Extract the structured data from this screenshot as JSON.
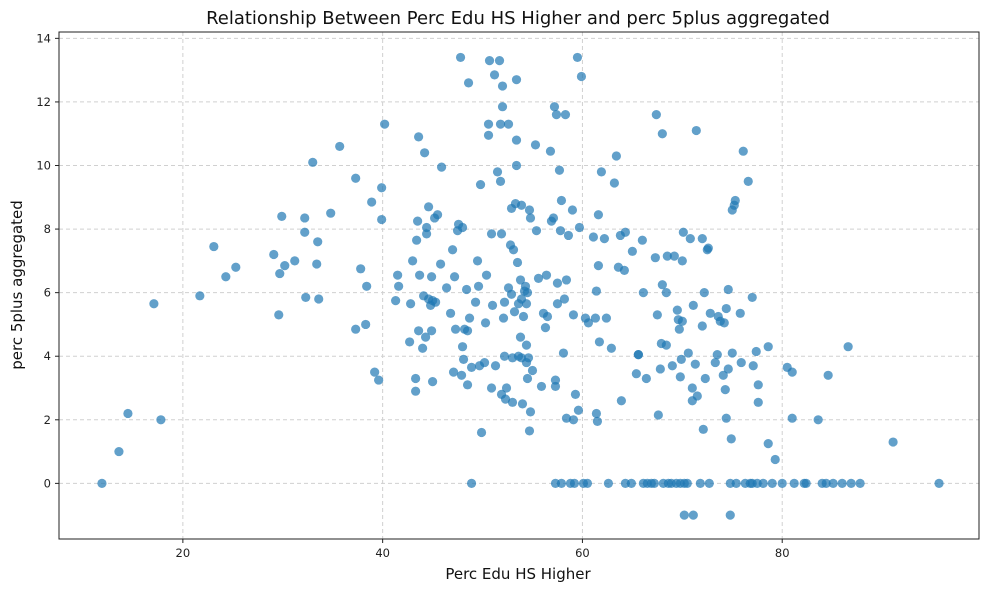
{
  "chart_data": {
    "type": "scatter",
    "title": "Relationship Between Perc Edu HS Higher and perc 5plus aggregated",
    "xlabel": "Perc Edu HS Higher",
    "ylabel": "perc 5plus aggregated",
    "xlim": [
      7.6,
      99.7
    ],
    "ylim": [
      -1.75,
      14.2
    ],
    "xticks": [
      20,
      40,
      60,
      80
    ],
    "yticks": [
      0,
      2,
      4,
      6,
      8,
      10,
      12,
      14
    ],
    "grid": true,
    "point_color": "#1f77b4",
    "point_opacity": 0.7,
    "points": [
      [
        11.9,
        0
      ],
      [
        13.6,
        1.0
      ],
      [
        14.5,
        2.2
      ],
      [
        17.1,
        5.65
      ],
      [
        17.8,
        2.0
      ],
      [
        21.7,
        5.9
      ],
      [
        23.1,
        7.45
      ],
      [
        24.3,
        6.5
      ],
      [
        25.3,
        6.8
      ],
      [
        29.1,
        7.2
      ],
      [
        29.6,
        5.3
      ],
      [
        29.7,
        6.6
      ],
      [
        29.9,
        8.4
      ],
      [
        30.2,
        6.85
      ],
      [
        31.2,
        7.0
      ],
      [
        32.2,
        7.9
      ],
      [
        32.2,
        8.35
      ],
      [
        32.3,
        5.85
      ],
      [
        33.0,
        10.1
      ],
      [
        33.4,
        6.9
      ],
      [
        33.5,
        7.6
      ],
      [
        33.6,
        5.8
      ],
      [
        34.8,
        8.5
      ],
      [
        35.7,
        10.6
      ],
      [
        37.3,
        9.6
      ],
      [
        37.3,
        4.85
      ],
      [
        37.8,
        6.75
      ],
      [
        38.3,
        5.0
      ],
      [
        38.4,
        6.2
      ],
      [
        38.9,
        8.85
      ],
      [
        39.2,
        3.5
      ],
      [
        39.6,
        3.25
      ],
      [
        39.9,
        9.3
      ],
      [
        39.9,
        8.3
      ],
      [
        40.2,
        11.3
      ],
      [
        41.3,
        5.75
      ],
      [
        41.5,
        6.55
      ],
      [
        41.6,
        6.2
      ],
      [
        42.7,
        4.45
      ],
      [
        42.8,
        5.65
      ],
      [
        43.0,
        7.0
      ],
      [
        43.3,
        3.3
      ],
      [
        43.3,
        2.9
      ],
      [
        43.4,
        7.65
      ],
      [
        43.5,
        8.25
      ],
      [
        43.6,
        10.9
      ],
      [
        43.6,
        4.8
      ],
      [
        43.7,
        6.55
      ],
      [
        44.0,
        4.25
      ],
      [
        44.1,
        5.9
      ],
      [
        44.2,
        10.4
      ],
      [
        44.3,
        4.6
      ],
      [
        44.4,
        7.85
      ],
      [
        44.4,
        8.05
      ],
      [
        44.6,
        8.7
      ],
      [
        44.6,
        5.8
      ],
      [
        44.8,
        5.6
      ],
      [
        44.9,
        4.8
      ],
      [
        44.9,
        6.5
      ],
      [
        45.0,
        3.2
      ],
      [
        45.0,
        5.75
      ],
      [
        45.2,
        8.35
      ],
      [
        45.3,
        5.7
      ],
      [
        45.5,
        8.45
      ],
      [
        45.8,
        6.9
      ],
      [
        45.9,
        9.95
      ],
      [
        46.4,
        6.15
      ],
      [
        46.8,
        5.35
      ],
      [
        47.0,
        7.35
      ],
      [
        47.1,
        3.5
      ],
      [
        47.2,
        6.5
      ],
      [
        47.3,
        4.85
      ],
      [
        47.5,
        7.95
      ],
      [
        47.6,
        8.15
      ],
      [
        47.8,
        13.4
      ],
      [
        47.9,
        3.4
      ],
      [
        48.0,
        8.05
      ],
      [
        48.0,
        4.3
      ],
      [
        48.1,
        3.9
      ],
      [
        48.2,
        4.85
      ],
      [
        48.4,
        6.1
      ],
      [
        48.5,
        3.1
      ],
      [
        48.5,
        4.8
      ],
      [
        48.6,
        12.6
      ],
      [
        48.7,
        5.2
      ],
      [
        48.9,
        3.65
      ],
      [
        48.9,
        0
      ],
      [
        49.3,
        5.7
      ],
      [
        49.5,
        7.0
      ],
      [
        49.6,
        6.2
      ],
      [
        49.7,
        3.7
      ],
      [
        49.8,
        9.4
      ],
      [
        49.9,
        1.6
      ],
      [
        50.2,
        3.8
      ],
      [
        50.3,
        5.05
      ],
      [
        50.4,
        6.55
      ],
      [
        50.6,
        11.3
      ],
      [
        50.6,
        10.95
      ],
      [
        50.7,
        13.3
      ],
      [
        50.9,
        7.85
      ],
      [
        50.9,
        3.0
      ],
      [
        51.0,
        5.6
      ],
      [
        51.2,
        12.85
      ],
      [
        51.3,
        3.7
      ],
      [
        51.5,
        9.8
      ],
      [
        51.7,
        13.3
      ],
      [
        51.8,
        11.3
      ],
      [
        51.8,
        9.5
      ],
      [
        51.9,
        7.85
      ],
      [
        51.9,
        2.8
      ],
      [
        52.0,
        12.5
      ],
      [
        52.0,
        11.85
      ],
      [
        52.1,
        5.2
      ],
      [
        52.2,
        4.0
      ],
      [
        52.2,
        5.7
      ],
      [
        52.3,
        2.65
      ],
      [
        52.4,
        3.0
      ],
      [
        52.6,
        11.3
      ],
      [
        52.6,
        6.15
      ],
      [
        52.8,
        7.5
      ],
      [
        52.9,
        8.65
      ],
      [
        52.9,
        5.95
      ],
      [
        53.0,
        3.95
      ],
      [
        53.0,
        2.55
      ],
      [
        53.1,
        7.35
      ],
      [
        53.2,
        5.4
      ],
      [
        53.3,
        8.8
      ],
      [
        53.4,
        12.7
      ],
      [
        53.4,
        10.0
      ],
      [
        53.4,
        10.8
      ],
      [
        53.5,
        6.95
      ],
      [
        53.6,
        5.65
      ],
      [
        53.6,
        4.0
      ],
      [
        53.8,
        4.6
      ],
      [
        53.8,
        6.4
      ],
      [
        53.9,
        3.95
      ],
      [
        53.9,
        8.75
      ],
      [
        53.9,
        5.8
      ],
      [
        54.0,
        2.5
      ],
      [
        54.1,
        5.25
      ],
      [
        54.2,
        6.05
      ],
      [
        54.3,
        6.2
      ],
      [
        54.4,
        4.35
      ],
      [
        54.4,
        3.8
      ],
      [
        54.4,
        5.65
      ],
      [
        54.5,
        6.0
      ],
      [
        54.5,
        3.3
      ],
      [
        54.6,
        3.95
      ],
      [
        54.7,
        8.6
      ],
      [
        54.7,
        1.65
      ],
      [
        54.8,
        2.25
      ],
      [
        54.8,
        8.35
      ],
      [
        55.0,
        3.55
      ],
      [
        55.3,
        10.65
      ],
      [
        55.4,
        7.95
      ],
      [
        55.6,
        6.45
      ],
      [
        55.9,
        3.05
      ],
      [
        56.1,
        5.35
      ],
      [
        56.3,
        4.9
      ],
      [
        56.4,
        6.55
      ],
      [
        56.5,
        5.25
      ],
      [
        56.8,
        10.45
      ],
      [
        56.9,
        8.25
      ],
      [
        57.1,
        8.35
      ],
      [
        57.2,
        11.85
      ],
      [
        57.3,
        3.25
      ],
      [
        57.3,
        3.05
      ],
      [
        57.3,
        0
      ],
      [
        57.4,
        11.6
      ],
      [
        57.5,
        5.65
      ],
      [
        57.5,
        6.3
      ],
      [
        57.7,
        9.85
      ],
      [
        57.8,
        7.95
      ],
      [
        57.9,
        8.9
      ],
      [
        57.9,
        0
      ],
      [
        58.1,
        4.1
      ],
      [
        58.2,
        5.8
      ],
      [
        58.3,
        11.6
      ],
      [
        58.4,
        6.4
      ],
      [
        58.4,
        2.05
      ],
      [
        58.6,
        7.8
      ],
      [
        58.8,
        0
      ],
      [
        59.0,
        8.6
      ],
      [
        59.1,
        5.3
      ],
      [
        59.1,
        2.0
      ],
      [
        59.2,
        0
      ],
      [
        59.3,
        2.8
      ],
      [
        59.5,
        13.4
      ],
      [
        59.6,
        2.3
      ],
      [
        59.7,
        8.05
      ],
      [
        59.9,
        12.8
      ],
      [
        60.1,
        0
      ],
      [
        60.3,
        5.2
      ],
      [
        60.5,
        0
      ],
      [
        60.6,
        5.05
      ],
      [
        61.1,
        7.75
      ],
      [
        61.3,
        5.2
      ],
      [
        61.4,
        2.2
      ],
      [
        61.4,
        6.05
      ],
      [
        61.5,
        1.95
      ],
      [
        61.6,
        8.45
      ],
      [
        61.6,
        6.85
      ],
      [
        61.7,
        4.45
      ],
      [
        61.9,
        9.8
      ],
      [
        62.2,
        7.7
      ],
      [
        62.4,
        5.2
      ],
      [
        62.6,
        0
      ],
      [
        62.9,
        4.25
      ],
      [
        63.2,
        9.45
      ],
      [
        63.4,
        10.3
      ],
      [
        63.6,
        6.8
      ],
      [
        63.8,
        7.8
      ],
      [
        63.9,
        2.6
      ],
      [
        64.2,
        6.7
      ],
      [
        64.3,
        7.9
      ],
      [
        64.3,
        0
      ],
      [
        64.9,
        0
      ],
      [
        65.0,
        7.3
      ],
      [
        65.4,
        3.45
      ],
      [
        65.6,
        4.05
      ],
      [
        65.6,
        4.05
      ],
      [
        66.0,
        7.65
      ],
      [
        66.1,
        6.0
      ],
      [
        66.1,
        0
      ],
      [
        66.4,
        3.3
      ],
      [
        66.5,
        0
      ],
      [
        66.9,
        0
      ],
      [
        67.2,
        0
      ],
      [
        67.3,
        7.1
      ],
      [
        67.4,
        11.6
      ],
      [
        67.5,
        5.3
      ],
      [
        67.6,
        2.15
      ],
      [
        67.8,
        3.6
      ],
      [
        67.9,
        4.4
      ],
      [
        68.0,
        6.25
      ],
      [
        68.0,
        11.0
      ],
      [
        68.1,
        0
      ],
      [
        68.4,
        4.35
      ],
      [
        68.4,
        6.0
      ],
      [
        68.5,
        7.15
      ],
      [
        68.6,
        0
      ],
      [
        68.9,
        0
      ],
      [
        69.0,
        3.7
      ],
      [
        69.2,
        7.15
      ],
      [
        69.4,
        0
      ],
      [
        69.5,
        5.45
      ],
      [
        69.6,
        5.15
      ],
      [
        69.7,
        4.85
      ],
      [
        69.8,
        3.35
      ],
      [
        69.8,
        0
      ],
      [
        69.9,
        3.9
      ],
      [
        70.0,
        7.0
      ],
      [
        70.0,
        5.1
      ],
      [
        70.1,
        7.9
      ],
      [
        70.2,
        0
      ],
      [
        70.2,
        -1.0
      ],
      [
        70.5,
        0
      ],
      [
        70.6,
        4.1
      ],
      [
        70.8,
        7.7
      ],
      [
        71.0,
        3.0
      ],
      [
        71.0,
        2.6
      ],
      [
        71.1,
        5.6
      ],
      [
        71.1,
        -1.0
      ],
      [
        71.3,
        3.75
      ],
      [
        71.4,
        11.1
      ],
      [
        71.5,
        2.75
      ],
      [
        71.8,
        0
      ],
      [
        72.0,
        7.7
      ],
      [
        72.0,
        4.95
      ],
      [
        72.1,
        1.7
      ],
      [
        72.2,
        6.0
      ],
      [
        72.3,
        3.3
      ],
      [
        72.5,
        7.35
      ],
      [
        72.6,
        7.4
      ],
      [
        72.7,
        0
      ],
      [
        72.8,
        5.35
      ],
      [
        73.3,
        3.8
      ],
      [
        73.5,
        4.05
      ],
      [
        73.6,
        5.25
      ],
      [
        73.8,
        5.1
      ],
      [
        74.1,
        3.4
      ],
      [
        74.2,
        5.05
      ],
      [
        74.3,
        2.95
      ],
      [
        74.4,
        2.05
      ],
      [
        74.4,
        5.5
      ],
      [
        74.6,
        6.1
      ],
      [
        74.6,
        3.6
      ],
      [
        74.8,
        0
      ],
      [
        74.8,
        -1.0
      ],
      [
        74.9,
        1.4
      ],
      [
        75.0,
        4.1
      ],
      [
        75.0,
        8.6
      ],
      [
        75.2,
        8.75
      ],
      [
        75.3,
        8.9
      ],
      [
        75.4,
        0
      ],
      [
        75.8,
        5.35
      ],
      [
        75.9,
        3.8
      ],
      [
        76.1,
        10.45
      ],
      [
        76.3,
        0
      ],
      [
        76.6,
        9.5
      ],
      [
        76.8,
        0
      ],
      [
        77.0,
        5.85
      ],
      [
        77.0,
        0
      ],
      [
        77.1,
        3.7
      ],
      [
        77.4,
        4.15
      ],
      [
        77.5,
        0
      ],
      [
        77.6,
        3.1
      ],
      [
        77.6,
        2.55
      ],
      [
        78.1,
        0
      ],
      [
        78.6,
        4.3
      ],
      [
        78.6,
        1.25
      ],
      [
        79.0,
        0
      ],
      [
        79.3,
        0.75
      ],
      [
        80.0,
        0
      ],
      [
        80.5,
        3.65
      ],
      [
        81.0,
        3.5
      ],
      [
        81.0,
        2.05
      ],
      [
        81.2,
        0
      ],
      [
        82.2,
        0
      ],
      [
        82.4,
        0
      ],
      [
        83.6,
        2.0
      ],
      [
        84.0,
        0
      ],
      [
        84.4,
        0
      ],
      [
        84.6,
        3.4
      ],
      [
        85.1,
        0
      ],
      [
        86.0,
        0
      ],
      [
        86.6,
        4.3
      ],
      [
        86.9,
        0
      ],
      [
        87.8,
        0
      ],
      [
        91.1,
        1.3
      ],
      [
        95.7,
        0
      ]
    ]
  }
}
